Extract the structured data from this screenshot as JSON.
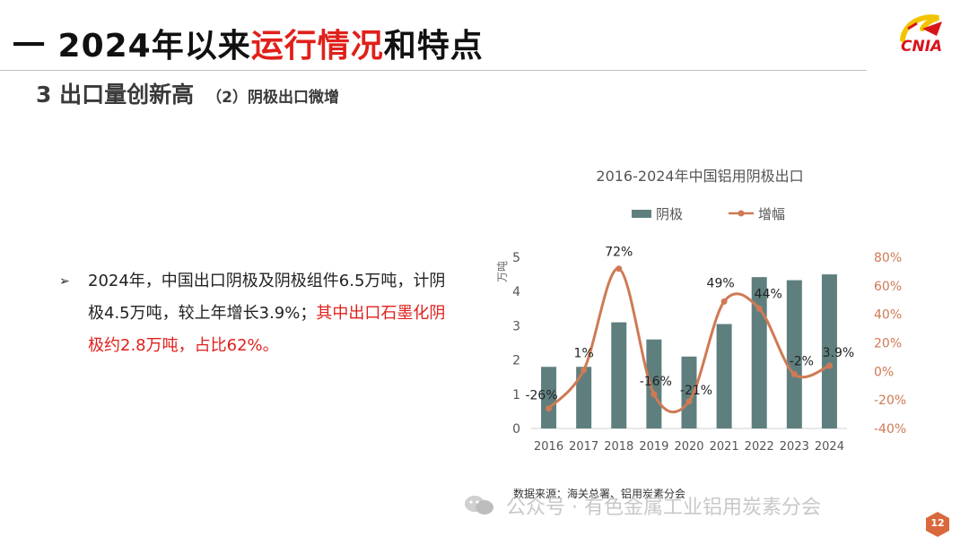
{
  "header": {
    "title_pre": "一 2024年以来",
    "title_highlight": "运行情况",
    "title_post": "和特点",
    "logo_text": "CNIA"
  },
  "section": {
    "title": "3 出口量创新高",
    "subtitle": "（2）阴极出口微增"
  },
  "bullet": {
    "marker": "➢",
    "text_black": "2024年，中国出口阴极及阴极组件6.5万吨，计阴极4.5万吨，较上年增长3.9%；",
    "text_red": "其中出口石墨化阴极约2.8万吨，占比62%。"
  },
  "chart_data": {
    "type": "bar",
    "title": "2016-2024年中国铝用阴极出口",
    "categories": [
      "2016",
      "2017",
      "2018",
      "2019",
      "2020",
      "2021",
      "2022",
      "2023",
      "2024"
    ],
    "series": [
      {
        "name": "阴极",
        "type": "bar",
        "axis": "left",
        "color": "#5f7f7f",
        "values": [
          1.8,
          1.8,
          3.1,
          2.6,
          2.1,
          3.05,
          4.42,
          4.33,
          4.5
        ]
      },
      {
        "name": "增幅",
        "type": "line",
        "axis": "right",
        "color": "#cf7a55",
        "values": [
          -26,
          1,
          72,
          -16,
          -21,
          49,
          44,
          -2,
          3.9
        ],
        "labels": [
          "-26%",
          "1%",
          "72%",
          "-16%",
          "-21%",
          "49%",
          "44%",
          "-2%",
          "3.9%"
        ]
      }
    ],
    "ylabel": "万吨",
    "ylim": [
      0,
      5
    ],
    "yticks": [
      "0",
      "1",
      "2",
      "3",
      "4",
      "5"
    ],
    "y2lim": [
      -40,
      80
    ],
    "y2ticks": [
      "-40%",
      "-20%",
      "0%",
      "20%",
      "40%",
      "60%",
      "80%"
    ],
    "legend_position": "top",
    "grid": false,
    "source": "数据来源：海关总署、铝用炭素分会"
  },
  "footer": {
    "watermark": "公众号 · 有色金属工业铝用炭素分会",
    "page_number": "12"
  },
  "colors": {
    "accent_red": "#e0201b",
    "bar": "#5f7f7f",
    "line": "#cf7a55"
  }
}
